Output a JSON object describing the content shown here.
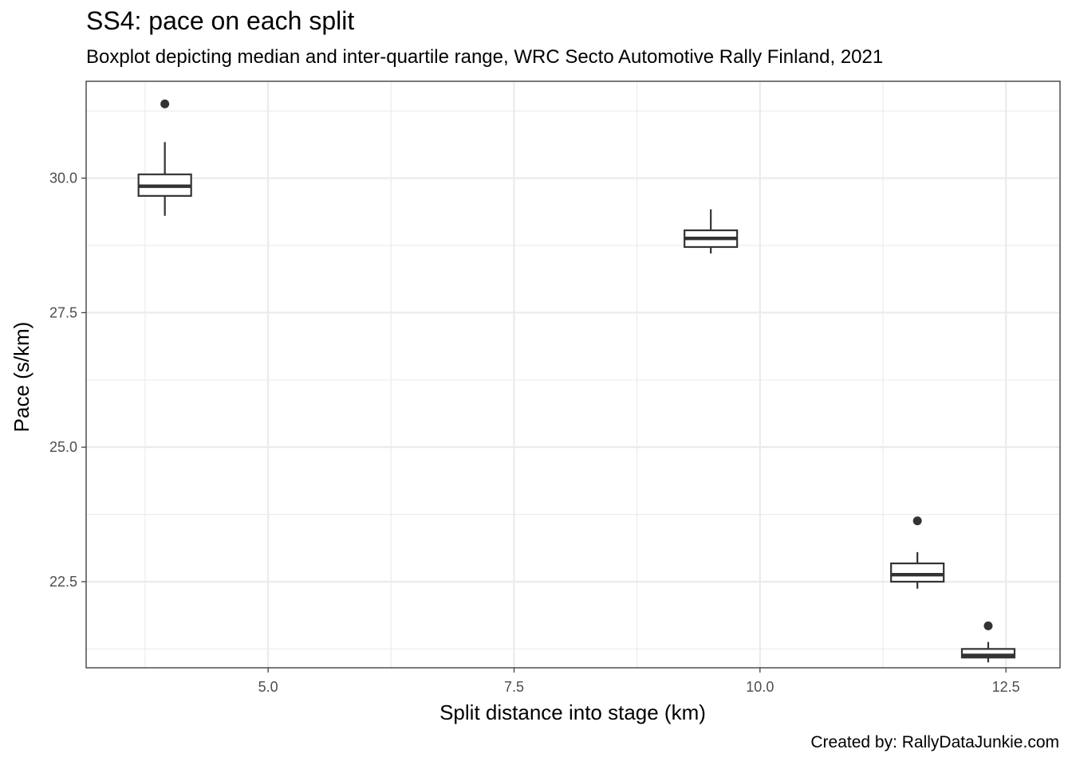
{
  "chart_data": {
    "type": "boxplot",
    "title": "SS4: pace on each split",
    "subtitle": "Boxplot depicting median and inter-quartile range, WRC Secto Automotive Rally Finland, 2021",
    "caption": "Created by: RallyDataJunkie.com",
    "xlabel": "Split distance into stage (km)",
    "ylabel": "Pace (s/km)",
    "xlim": [
      3.15,
      13.05
    ],
    "ylim": [
      20.9,
      31.8
    ],
    "xticks": [
      "5.0",
      "7.5",
      "10.0",
      "12.5"
    ],
    "yticks": [
      "22.5",
      "25.0",
      "27.5",
      "30.0"
    ],
    "grid": true,
    "boxes": [
      {
        "x": 3.95,
        "lower_whisker": 29.3,
        "q1": 29.67,
        "median": 29.85,
        "q3": 30.07,
        "upper_whisker": 30.67,
        "outliers": [
          31.38
        ]
      },
      {
        "x": 9.5,
        "lower_whisker": 28.6,
        "q1": 28.72,
        "median": 28.88,
        "q3": 29.03,
        "upper_whisker": 29.42,
        "outliers": []
      },
      {
        "x": 11.6,
        "lower_whisker": 22.37,
        "q1": 22.5,
        "median": 22.63,
        "q3": 22.84,
        "upper_whisker": 23.05,
        "outliers": [
          23.63
        ]
      },
      {
        "x": 12.32,
        "lower_whisker": 21.0,
        "q1": 21.09,
        "median": 21.13,
        "q3": 21.25,
        "upper_whisker": 21.38,
        "outliers": [
          21.68
        ]
      }
    ]
  }
}
